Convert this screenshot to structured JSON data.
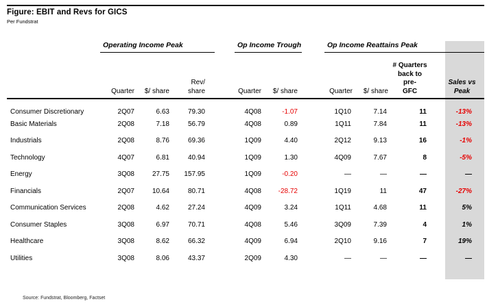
{
  "title": "Figure: EBIT and Revs for GICS",
  "subtitle": "Per Fundstrat",
  "source": "Source: Fundstrat, Bloomberg, Factset",
  "colors": {
    "negative_red": "#e60000",
    "highlight_gray": "#d9d9d9",
    "text": "#000000"
  },
  "groups": [
    {
      "label": "Operating Income Peak"
    },
    {
      "label": "Op Income Trough"
    },
    {
      "label": "Op Income Reattains Peak"
    }
  ],
  "columns": {
    "sector": "",
    "peak_quarter": "Quarter",
    "peak_eps": "$/ share",
    "peak_rev": "Rev/\nshare",
    "trough_quarter": "Quarter",
    "trough_eps": "$/ share",
    "reattain_quarter": "Quarter",
    "reattain_eps": "$/ share",
    "quarters_back": "# Quarters\nback to pre-\nGFC",
    "sales_vs_peak": "Sales vs\nPeak"
  },
  "table": {
    "rows": [
      {
        "sector": "Consumer Discretionary",
        "peak_quarter": "2Q07",
        "peak_eps": "6.63",
        "peak_rev": "79.30",
        "trough_quarter": "4Q08",
        "trough_eps": "-1.07",
        "reattain_quarter": "1Q10",
        "reattain_eps": "7.14",
        "quarters_back": "11",
        "sales_vs_peak": "-13%"
      },
      {
        "sector": "Basic Materials",
        "peak_quarter": "2Q08",
        "peak_eps": "7.18",
        "peak_rev": "56.79",
        "trough_quarter": "4Q08",
        "trough_eps": "0.89",
        "reattain_quarter": "1Q11",
        "reattain_eps": "7.84",
        "quarters_back": "11",
        "sales_vs_peak": "-13%"
      },
      {
        "sector": "Industrials",
        "peak_quarter": "2Q08",
        "peak_eps": "8.76",
        "peak_rev": "69.36",
        "trough_quarter": "1Q09",
        "trough_eps": "4.40",
        "reattain_quarter": "2Q12",
        "reattain_eps": "9.13",
        "quarters_back": "16",
        "sales_vs_peak": "-1%"
      },
      {
        "sector": "Technology",
        "peak_quarter": "4Q07",
        "peak_eps": "6.81",
        "peak_rev": "40.94",
        "trough_quarter": "1Q09",
        "trough_eps": "1.30",
        "reattain_quarter": "4Q09",
        "reattain_eps": "7.67",
        "quarters_back": "8",
        "sales_vs_peak": "-5%"
      },
      {
        "sector": "Energy",
        "peak_quarter": "3Q08",
        "peak_eps": "27.75",
        "peak_rev": "157.95",
        "trough_quarter": "1Q09",
        "trough_eps": "-0.20",
        "reattain_quarter": "—",
        "reattain_eps": "—",
        "quarters_back": "—",
        "sales_vs_peak": "—"
      },
      {
        "sector": "Financials",
        "peak_quarter": "2Q07",
        "peak_eps": "10.64",
        "peak_rev": "80.71",
        "trough_quarter": "4Q08",
        "trough_eps": "-28.72",
        "reattain_quarter": "1Q19",
        "reattain_eps": "11",
        "quarters_back": "47",
        "sales_vs_peak": "-27%"
      },
      {
        "sector": "Communication Services",
        "peak_quarter": "2Q08",
        "peak_eps": "4.62",
        "peak_rev": "27.24",
        "trough_quarter": "4Q09",
        "trough_eps": "3.24",
        "reattain_quarter": "1Q11",
        "reattain_eps": "4.68",
        "quarters_back": "11",
        "sales_vs_peak": "5%"
      },
      {
        "sector": "Consumer Staples",
        "peak_quarter": "3Q08",
        "peak_eps": "6.97",
        "peak_rev": "70.71",
        "trough_quarter": "4Q08",
        "trough_eps": "5.46",
        "reattain_quarter": "3Q09",
        "reattain_eps": "7.39",
        "quarters_back": "4",
        "sales_vs_peak": "1%"
      },
      {
        "sector": "Healthcare",
        "peak_quarter": "3Q08",
        "peak_eps": "8.62",
        "peak_rev": "66.32",
        "trough_quarter": "4Q09",
        "trough_eps": "6.94",
        "reattain_quarter": "2Q10",
        "reattain_eps": "9.16",
        "quarters_back": "7",
        "sales_vs_peak": "19%"
      },
      {
        "sector": "Utilities",
        "peak_quarter": "3Q08",
        "peak_eps": "8.06",
        "peak_rev": "43.37",
        "trough_quarter": "2Q09",
        "trough_eps": "4.30",
        "reattain_quarter": "—",
        "reattain_eps": "—",
        "quarters_back": "—",
        "sales_vs_peak": "—"
      }
    ]
  }
}
